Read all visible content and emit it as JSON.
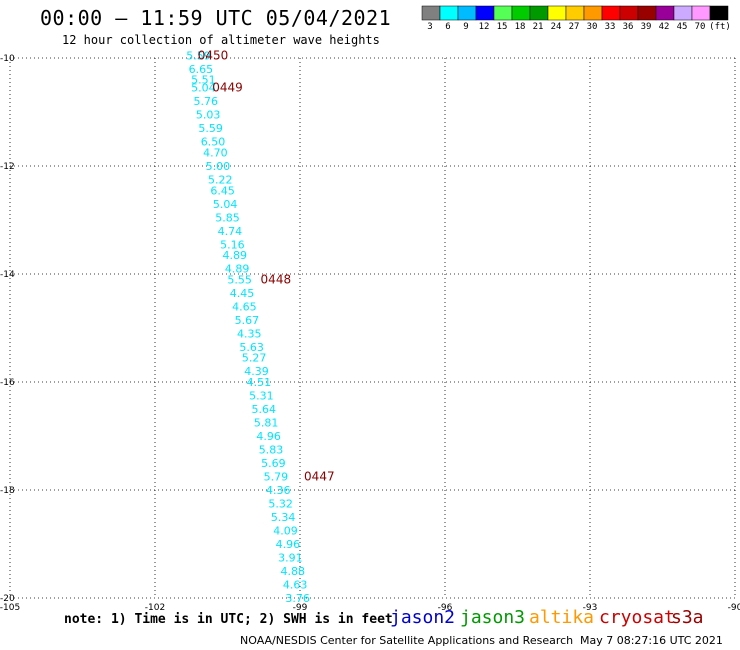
{
  "header": {
    "title": "00:00 – 11:59 UTC 05/04/2021",
    "subtitle": "12 hour collection of altimeter wave heights"
  },
  "footer": {
    "note": "note: 1) Time is in UTC; 2) SWH is in feet",
    "credit": "NOAA/NESDIS Center for Satellite Applications and Research",
    "timestamp": "May  7 08:27:16 UTC 2021",
    "missions": [
      {
        "name": "jason2",
        "color": "#0000cc"
      },
      {
        "name": "jason3",
        "color": "#009900"
      },
      {
        "name": "altika",
        "color": "#ff9900"
      },
      {
        "name": "cryosat",
        "color": "#cc0000"
      },
      {
        "name": "s3a",
        "color": "#990000"
      }
    ]
  },
  "colorbar": {
    "colors": [
      "#808080",
      "#00ffff",
      "#00bbff",
      "#0000ff",
      "#55ff55",
      "#00cc00",
      "#009900",
      "#ffff00",
      "#ffcc00",
      "#ff9900",
      "#ff0000",
      "#cc0000",
      "#990000",
      "#990099",
      "#ccaaff",
      "#ff99ff",
      "#000000"
    ],
    "labels": [
      "3",
      "6",
      "9",
      "12",
      "15",
      "18",
      "21",
      "24",
      "27",
      "30",
      "33",
      "36",
      "39",
      "42",
      "45",
      "70",
      "(ft)"
    ]
  },
  "chart_data": {
    "type": "scatter",
    "title": "00:00 – 11:59 UTC 05/04/2021",
    "xlim": [
      -105,
      -90
    ],
    "ylim": [
      -20,
      -10
    ],
    "x_ticks": [
      -105,
      -102,
      -99,
      -96,
      -93,
      -90
    ],
    "y_ticks": [
      -10,
      -12,
      -14,
      -16,
      -18,
      -20
    ],
    "x_tick_labels": [
      "-105",
      "-102",
      "-99",
      "-96",
      "-93",
      "-90"
    ],
    "y_tick_labels": [
      "-10",
      "-12",
      "-14",
      "-16",
      "-18",
      "-20"
    ],
    "grid": true,
    "points": [
      {
        "lon": -101.1,
        "lat": -9.95,
        "swh": "5.59"
      },
      {
        "lon": -101.05,
        "lat": -10.2,
        "swh": "6.65"
      },
      {
        "lon": -101.0,
        "lat": -10.4,
        "swh": "5.51"
      },
      {
        "lon": -101.0,
        "lat": -10.55,
        "swh": "5.04"
      },
      {
        "lon": -100.95,
        "lat": -10.8,
        "swh": "5.76"
      },
      {
        "lon": -100.9,
        "lat": -11.05,
        "swh": "5.03"
      },
      {
        "lon": -100.85,
        "lat": -11.3,
        "swh": "5.59"
      },
      {
        "lon": -100.8,
        "lat": -11.55,
        "swh": "6.50"
      },
      {
        "lon": -100.75,
        "lat": -11.75,
        "swh": "4.70"
      },
      {
        "lon": -100.7,
        "lat": -12.0,
        "swh": "5.00"
      },
      {
        "lon": -100.65,
        "lat": -12.25,
        "swh": "5.22"
      },
      {
        "lon": -100.6,
        "lat": -12.45,
        "swh": "6.45"
      },
      {
        "lon": -100.55,
        "lat": -12.7,
        "swh": "5.04"
      },
      {
        "lon": -100.5,
        "lat": -12.95,
        "swh": "5.85"
      },
      {
        "lon": -100.45,
        "lat": -13.2,
        "swh": "4.74"
      },
      {
        "lon": -100.4,
        "lat": -13.45,
        "swh": "5.16"
      },
      {
        "lon": -100.35,
        "lat": -13.65,
        "swh": "4.89"
      },
      {
        "lon": -100.3,
        "lat": -13.9,
        "swh": "4.89"
      },
      {
        "lon": -100.25,
        "lat": -14.1,
        "swh": "5.55"
      },
      {
        "lon": -100.2,
        "lat": -14.35,
        "swh": "4.45"
      },
      {
        "lon": -100.15,
        "lat": -14.6,
        "swh": "4.65"
      },
      {
        "lon": -100.1,
        "lat": -14.85,
        "swh": "5.67"
      },
      {
        "lon": -100.05,
        "lat": -15.1,
        "swh": "4.35"
      },
      {
        "lon": -100.0,
        "lat": -15.35,
        "swh": "5.63"
      },
      {
        "lon": -99.95,
        "lat": -15.55,
        "swh": "5.27"
      },
      {
        "lon": -99.9,
        "lat": -15.8,
        "swh": "4.39"
      },
      {
        "lon": -99.85,
        "lat": -16.0,
        "swh": "4.51"
      },
      {
        "lon": -99.8,
        "lat": -16.25,
        "swh": "5.31"
      },
      {
        "lon": -99.75,
        "lat": -16.5,
        "swh": "5.64"
      },
      {
        "lon": -99.7,
        "lat": -16.75,
        "swh": "5.81"
      },
      {
        "lon": -99.65,
        "lat": -17.0,
        "swh": "4.96"
      },
      {
        "lon": -99.6,
        "lat": -17.25,
        "swh": "5.83"
      },
      {
        "lon": -99.55,
        "lat": -17.5,
        "swh": "5.69"
      },
      {
        "lon": -99.5,
        "lat": -17.75,
        "swh": "5.79"
      },
      {
        "lon": -99.45,
        "lat": -18.0,
        "swh": "4.36"
      },
      {
        "lon": -99.4,
        "lat": -18.25,
        "swh": "5.32"
      },
      {
        "lon": -99.35,
        "lat": -18.5,
        "swh": "5.34"
      },
      {
        "lon": -99.3,
        "lat": -18.75,
        "swh": "4.09"
      },
      {
        "lon": -99.25,
        "lat": -19.0,
        "swh": "4.96"
      },
      {
        "lon": -99.2,
        "lat": -19.25,
        "swh": "3.91"
      },
      {
        "lon": -99.15,
        "lat": -19.5,
        "swh": "4.88"
      },
      {
        "lon": -99.1,
        "lat": -19.75,
        "swh": "4.63"
      },
      {
        "lon": -99.05,
        "lat": -20.0,
        "swh": "3.76"
      }
    ],
    "time_labels": [
      {
        "lon": -100.8,
        "lat": -9.95,
        "text": "0450"
      },
      {
        "lon": -100.5,
        "lat": -10.55,
        "text": "0449"
      },
      {
        "lon": -99.5,
        "lat": -14.1,
        "text": "0448"
      },
      {
        "lon": -98.6,
        "lat": -17.75,
        "text": "0447"
      }
    ],
    "point_color": "#00e5ff",
    "time_label_color": "#8b0000"
  }
}
